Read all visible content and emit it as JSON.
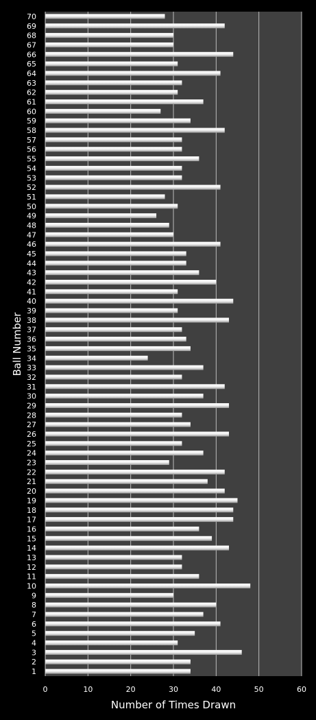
{
  "chart_data": {
    "type": "bar",
    "orientation": "horizontal",
    "xlabel": "Number of Times Drawn",
    "ylabel": "Ball Number",
    "xlim": [
      0,
      60
    ],
    "xticks": [
      0,
      10,
      20,
      30,
      40,
      50,
      60
    ],
    "grid": "vertical",
    "categories": [
      "1",
      "2",
      "3",
      "4",
      "5",
      "6",
      "7",
      "8",
      "9",
      "10",
      "11",
      "12",
      "13",
      "14",
      "15",
      "16",
      "17",
      "18",
      "19",
      "20",
      "21",
      "22",
      "23",
      "24",
      "25",
      "26",
      "27",
      "28",
      "29",
      "30",
      "31",
      "32",
      "33",
      "34",
      "35",
      "36",
      "37",
      "38",
      "39",
      "40",
      "41",
      "42",
      "43",
      "44",
      "45",
      "46",
      "47",
      "48",
      "49",
      "50",
      "51",
      "52",
      "53",
      "54",
      "55",
      "56",
      "57",
      "58",
      "59",
      "60",
      "61",
      "62",
      "63",
      "64",
      "65",
      "66",
      "67",
      "68",
      "69",
      "70"
    ],
    "values": [
      34,
      34,
      46,
      31,
      35,
      41,
      37,
      40,
      30,
      48,
      36,
      32,
      32,
      43,
      39,
      36,
      44,
      44,
      45,
      42,
      38,
      42,
      29,
      37,
      32,
      43,
      34,
      32,
      43,
      37,
      42,
      32,
      37,
      24,
      34,
      33,
      32,
      43,
      31,
      44,
      31,
      40,
      36,
      33,
      33,
      41,
      30,
      29,
      26,
      31,
      28,
      41,
      32,
      32,
      36,
      32,
      32,
      42,
      34,
      27,
      37,
      31,
      32,
      41,
      31,
      44,
      30,
      30,
      42,
      28
    ],
    "colors": {
      "plot_bg": "#404040",
      "page_bg": "#000000",
      "bar": "#e8e8e8",
      "grid": "#bdbdbd",
      "text": "#ffffff"
    }
  }
}
